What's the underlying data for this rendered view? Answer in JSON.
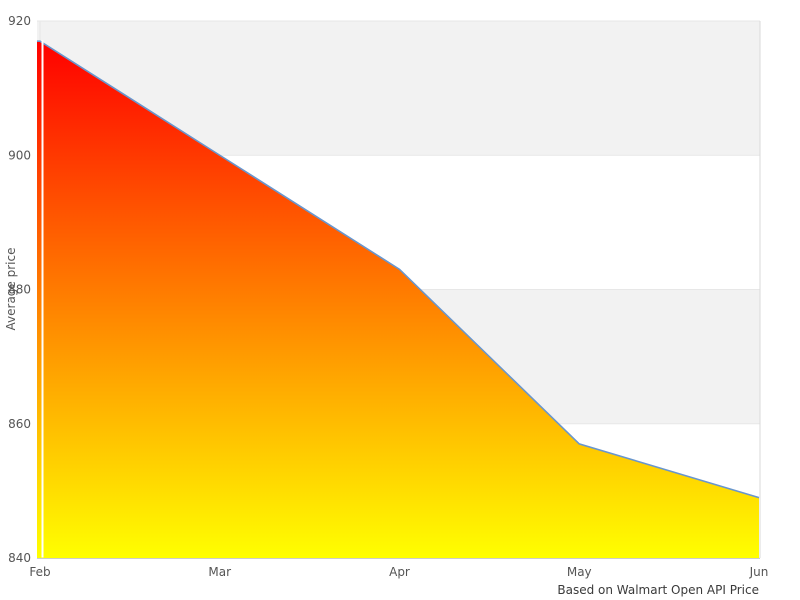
{
  "chart_data": {
    "type": "area",
    "title": "",
    "categories": [
      "Feb",
      "Mar",
      "Apr",
      "May",
      "Jun"
    ],
    "values": [
      917,
      900,
      883,
      857,
      849
    ],
    "series_name": "Average price",
    "xlabel": "",
    "ylabel": "Average price",
    "caption": "Based on Walmart Open API Price",
    "ylim": [
      840,
      920
    ],
    "yticks": [
      840,
      860,
      880,
      900,
      920
    ],
    "grid": "horizontal gridlines with alternating gray bands (920-900 and 880-860 shaded)",
    "legend_position": "none",
    "colors": {
      "fill_gradient_top": "#ff0000",
      "fill_gradient_bottom": "#ffff00",
      "line": "#6996cd",
      "band": "#f2f2f2",
      "gridline": "#e7e7e7",
      "plot_border": "#d9d9d9",
      "axis_line": "#cccccc",
      "tick_text": "#555555",
      "caption_text": "#3a3a3a",
      "background": "#ffffff"
    }
  }
}
